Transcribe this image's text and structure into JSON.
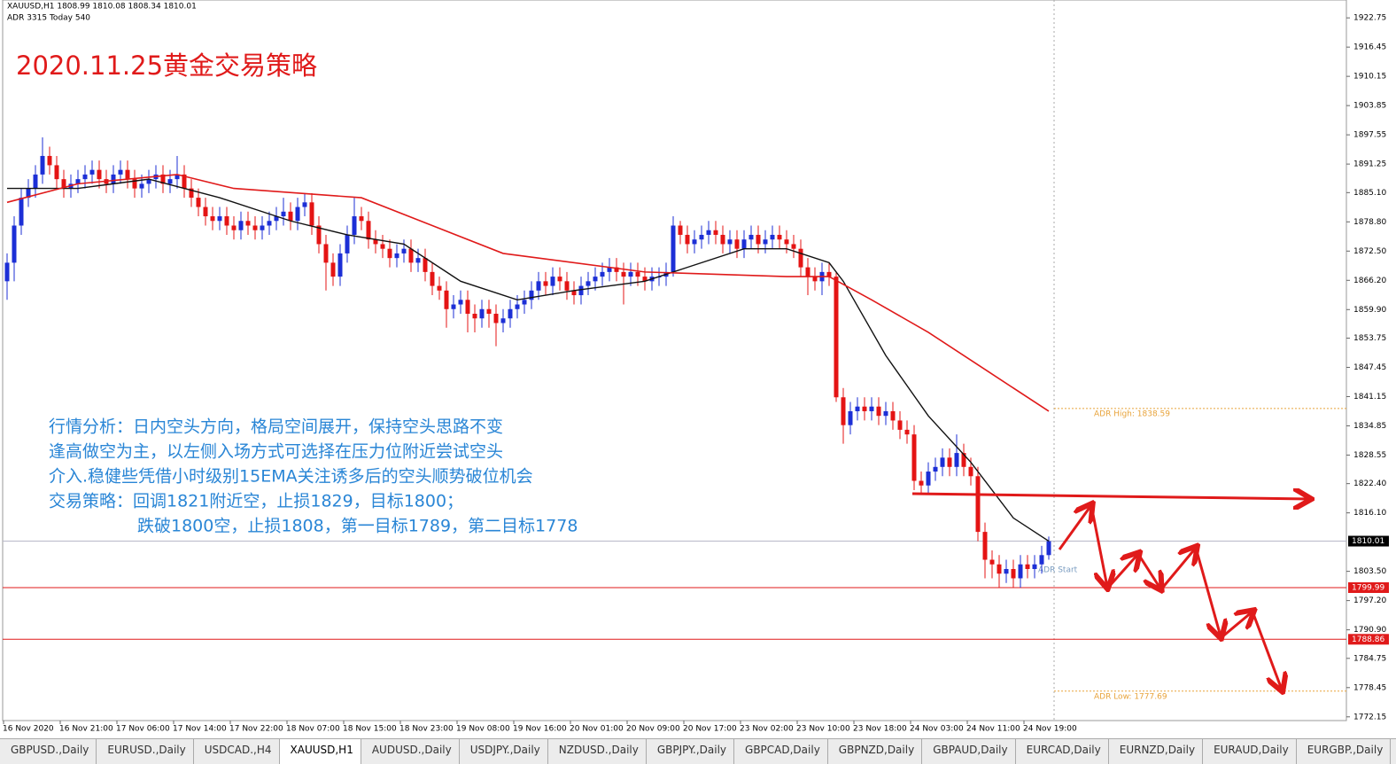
{
  "header": {
    "symbol_line": "XAUUSD,H1  1808.99 1810.08 1808.34 1810.01",
    "adr_line": "ADR 3315  Today 540"
  },
  "annotation": {
    "title": "2020.11.25黄金交易策略",
    "lines": [
      "行情分析：日内空头方向，格局空间展开，保持空头思路不变",
      "逢高做空为主，以左侧入场方式可选择在压力位附近尝试空头",
      "介入.稳健些凭借小时级别15EMA关注诱多后的空头顺势破位机会",
      "交易策略：回调1821附近空，止损1829，目标1800；",
      "跌破1800空，止损1808，第一目标1789，第二目标1778"
    ]
  },
  "tabs": [
    "GBPUSD.,Daily",
    "EURUSD.,Daily",
    "USDCAD.,H4",
    "XAUUSD,H1",
    "AUDUSD.,Daily",
    "USDJPY.,Daily",
    "NZDUSD.,Daily",
    "GBPJPY.,Daily",
    "GBPCAD,Daily",
    "GBPNZD,Daily",
    "GBPAUD,Daily",
    "EURCAD,Daily",
    "EURNZD,Daily",
    "EURAUD,Daily",
    "EURGBP.,Daily"
  ],
  "active_tab": "XAUUSD,H1",
  "chart_data": {
    "type": "candlestick",
    "up_color": "#1c2fd6",
    "down_color": "#e41414",
    "categories": [
      "16 Nov 2020",
      null,
      null,
      null,
      null,
      null,
      null,
      null,
      "16 Nov 21:00",
      null,
      null,
      null,
      null,
      null,
      null,
      null,
      "17 Nov 06:00",
      null,
      null,
      null,
      null,
      null,
      null,
      null,
      "17 Nov 14:00",
      null,
      null,
      null,
      null,
      null,
      null,
      null,
      "17 Nov 22:00",
      null,
      null,
      null,
      null,
      null,
      null,
      null,
      "18 Nov 07:00",
      null,
      null,
      null,
      null,
      null,
      null,
      null,
      "18 Nov 15:00",
      null,
      null,
      null,
      null,
      null,
      null,
      null,
      "18 Nov 23:00",
      null,
      null,
      null,
      null,
      null,
      null,
      null,
      "19 Nov 08:00",
      null,
      null,
      null,
      null,
      null,
      null,
      null,
      "19 Nov 16:00",
      null,
      null,
      null,
      null,
      null,
      null,
      null,
      "20 Nov 01:00",
      null,
      null,
      null,
      null,
      null,
      null,
      null,
      "20 Nov 09:00",
      null,
      null,
      null,
      null,
      null,
      null,
      null,
      "20 Nov 17:00",
      null,
      null,
      null,
      null,
      null,
      null,
      null,
      "23 Nov 02:00",
      null,
      null,
      null,
      null,
      null,
      null,
      null,
      "23 Nov 10:00",
      null,
      null,
      null,
      null,
      null,
      null,
      null,
      "23 Nov 18:00",
      null,
      null,
      null,
      null,
      null,
      null,
      null,
      "24 Nov 03:00",
      null,
      null,
      null,
      null,
      null,
      null,
      null,
      "24 Nov 11:00",
      null,
      null,
      null,
      null,
      null,
      null,
      null,
      "24 Nov 19:00",
      null,
      null,
      null
    ],
    "open": [
      1866,
      1870,
      1878,
      1884,
      1886,
      1889,
      1893,
      1891,
      1888,
      1886,
      1887,
      1888,
      1889,
      1890,
      1888,
      1887,
      1889,
      1890,
      1888,
      1886,
      1887,
      1888,
      1889,
      1887,
      1888,
      1889,
      1886,
      1884,
      1882,
      1880,
      1879,
      1880,
      1878,
      1877,
      1879,
      1878,
      1877,
      1878,
      1879,
      1880,
      1881,
      1879,
      1882,
      1883,
      1878,
      1874,
      1870,
      1867,
      1872,
      1876,
      1880,
      1879,
      1875,
      1874,
      1873,
      1871,
      1872,
      1873,
      1870,
      1871,
      1868,
      1865,
      1864,
      1860,
      1861,
      1862,
      1859,
      1858,
      1860,
      1859,
      1857,
      1858,
      1860,
      1861,
      1862,
      1864,
      1866,
      1865,
      1867,
      1866,
      1864,
      1863,
      1865,
      1866,
      1867,
      1868,
      1869,
      1868,
      1867,
      1868,
      1867,
      1866,
      1867,
      1867,
      1868,
      1878,
      1876,
      1874,
      1875,
      1876,
      1877,
      1876,
      1874,
      1875,
      1873,
      1875,
      1876,
      1874,
      1875,
      1876,
      1875,
      1874,
      1873,
      1869,
      1867,
      1866,
      1868,
      1867,
      1841,
      1835,
      1838,
      1839,
      1838,
      1839,
      1837,
      1838,
      1836,
      1834,
      1833,
      1823,
      1822,
      1825,
      1826,
      1828,
      1826,
      1829,
      1826,
      1824,
      1812,
      1806,
      1805,
      1803,
      1804,
      1802,
      1805,
      1804,
      1805,
      1807
    ],
    "high": [
      1872,
      1880,
      1886,
      1888,
      1891,
      1897,
      1895,
      1893,
      1890,
      1889,
      1890,
      1891,
      1892,
      1892,
      1890,
      1891,
      1892,
      1892,
      1890,
      1889,
      1890,
      1891,
      1891,
      1890,
      1893,
      1891,
      1888,
      1886,
      1884,
      1882,
      1882,
      1882,
      1880,
      1881,
      1881,
      1880,
      1880,
      1881,
      1882,
      1884,
      1883,
      1884,
      1885,
      1885,
      1880,
      1876,
      1872,
      1874,
      1878,
      1884,
      1882,
      1881,
      1877,
      1876,
      1875,
      1874,
      1875,
      1875,
      1873,
      1873,
      1870,
      1867,
      1866,
      1863,
      1864,
      1864,
      1861,
      1862,
      1862,
      1861,
      1860,
      1862,
      1863,
      1864,
      1866,
      1868,
      1868,
      1869,
      1869,
      1868,
      1866,
      1867,
      1868,
      1869,
      1870,
      1871,
      1871,
      1870,
      1870,
      1870,
      1869,
      1869,
      1869,
      1870,
      1880,
      1879,
      1878,
      1877,
      1878,
      1879,
      1879,
      1878,
      1877,
      1877,
      1877,
      1878,
      1878,
      1877,
      1878,
      1878,
      1877,
      1876,
      1875,
      1871,
      1869,
      1870,
      1870,
      1868,
      1843,
      1840,
      1841,
      1841,
      1841,
      1841,
      1840,
      1840,
      1838,
      1836,
      1835,
      1825,
      1827,
      1828,
      1830,
      1830,
      1833,
      1831,
      1828,
      1826,
      1814,
      1808,
      1807,
      1806,
      1806,
      1807,
      1807,
      1807,
      1809,
      1811
    ],
    "low": [
      1862,
      1866,
      1876,
      1882,
      1884,
      1887,
      1889,
      1886,
      1884,
      1884,
      1885,
      1886,
      1887,
      1886,
      1885,
      1885,
      1887,
      1886,
      1884,
      1884,
      1885,
      1886,
      1885,
      1885,
      1886,
      1884,
      1882,
      1880,
      1878,
      1877,
      1877,
      1876,
      1875,
      1875,
      1876,
      1875,
      1875,
      1876,
      1877,
      1878,
      1877,
      1877,
      1880,
      1876,
      1872,
      1864,
      1865,
      1865,
      1870,
      1874,
      1877,
      1873,
      1872,
      1871,
      1869,
      1869,
      1870,
      1868,
      1868,
      1866,
      1863,
      1862,
      1856,
      1858,
      1859,
      1855,
      1855,
      1856,
      1856,
      1852,
      1855,
      1856,
      1858,
      1859,
      1860,
      1862,
      1863,
      1863,
      1864,
      1862,
      1861,
      1861,
      1863,
      1864,
      1865,
      1866,
      1866,
      1861,
      1865,
      1865,
      1864,
      1864,
      1865,
      1865,
      1867,
      1874,
      1872,
      1872,
      1873,
      1874,
      1874,
      1872,
      1872,
      1871,
      1871,
      1873,
      1872,
      1872,
      1873,
      1873,
      1872,
      1871,
      1867,
      1863,
      1864,
      1863,
      1865,
      1840,
      1831,
      1833,
      1836,
      1836,
      1836,
      1835,
      1835,
      1834,
      1832,
      1831,
      1821,
      1820,
      1820,
      1823,
      1824,
      1824,
      1824,
      1824,
      1822,
      1810,
      1802,
      1802,
      1800,
      1801,
      1800,
      1800,
      1802,
      1802,
      1803,
      1806
    ],
    "close": [
      1870,
      1878,
      1884,
      1886,
      1889,
      1893,
      1891,
      1888,
      1886,
      1887,
      1888,
      1889,
      1890,
      1888,
      1887,
      1889,
      1890,
      1888,
      1886,
      1887,
      1888,
      1889,
      1887,
      1888,
      1889,
      1886,
      1884,
      1882,
      1880,
      1879,
      1880,
      1878,
      1877,
      1879,
      1878,
      1877,
      1878,
      1879,
      1880,
      1881,
      1879,
      1882,
      1883,
      1878,
      1874,
      1870,
      1867,
      1872,
      1876,
      1880,
      1879,
      1875,
      1874,
      1873,
      1871,
      1872,
      1873,
      1870,
      1871,
      1868,
      1865,
      1864,
      1860,
      1861,
      1862,
      1859,
      1858,
      1860,
      1859,
      1857,
      1858,
      1860,
      1861,
      1862,
      1864,
      1866,
      1865,
      1867,
      1866,
      1864,
      1863,
      1865,
      1866,
      1867,
      1868,
      1869,
      1868,
      1867,
      1868,
      1867,
      1866,
      1867,
      1867,
      1868,
      1878,
      1876,
      1874,
      1875,
      1876,
      1877,
      1876,
      1874,
      1875,
      1873,
      1875,
      1876,
      1874,
      1875,
      1876,
      1875,
      1874,
      1873,
      1869,
      1867,
      1866,
      1868,
      1867,
      1841,
      1835,
      1838,
      1839,
      1838,
      1839,
      1837,
      1838,
      1836,
      1834,
      1833,
      1823,
      1822,
      1825,
      1826,
      1828,
      1826,
      1829,
      1826,
      1824,
      1812,
      1806,
      1805,
      1803,
      1804,
      1802,
      1805,
      1804,
      1805,
      1807,
      1810
    ],
    "lines": [
      {
        "color": "#111111",
        "x": [
          0,
          10,
          20,
          30,
          40,
          48,
          56,
          64,
          72,
          80,
          90,
          96,
          104,
          110,
          116,
          118,
          124,
          130,
          136,
          142,
          147
        ],
        "values": [
          1886,
          1886,
          1888,
          1884,
          1879,
          1876,
          1874,
          1866,
          1862,
          1864,
          1866,
          1869,
          1873,
          1873,
          1870,
          1866,
          1850,
          1837,
          1827,
          1815,
          1810
        ]
      },
      {
        "color": "#e01a1a",
        "x": [
          0,
          10,
          24,
          32,
          50,
          70,
          90,
          110,
          116,
          122,
          130,
          138,
          147
        ],
        "values": [
          1883,
          1887,
          1889,
          1886,
          1884,
          1872,
          1868,
          1867,
          1867,
          1862,
          1855,
          1847,
          1838
        ]
      }
    ],
    "levels": [
      {
        "value": 1810.01,
        "color": "#b8b8c8",
        "tag_color": "#000000"
      },
      {
        "value": 1799.99,
        "color": "#e01a1a",
        "tag_color": "#e01a1a"
      },
      {
        "value": 1788.86,
        "color": "#e01a1a",
        "tag_color": "#e01a1a"
      }
    ],
    "adr": [
      {
        "label": "ADR High: 1838.59",
        "value": 1838.59
      },
      {
        "label": "ADR Low: 1777.69",
        "value": 1777.69
      }
    ],
    "adr_color": "#e8a33a",
    "adr_start": "ADR Start",
    "ylim": [
      1768.1,
      1926.6
    ],
    "yticks": [
      1922.75,
      1916.45,
      1910.15,
      1903.85,
      1897.55,
      1891.25,
      {
        "value": 1885.1,
        "label": "1885.10"
      },
      {
        "value": 1878.8,
        "label": "1878.80"
      },
      {
        "value": 1872.5,
        "label": "1872.50"
      },
      {
        "value": 1866.2,
        "label": "1866.20"
      },
      {
        "value": 1859.9,
        "label": "1859.90"
      },
      1853.75,
      1847.45,
      1841.15,
      1834.85,
      1828.55,
      {
        "value": 1822.4,
        "label": "1822.40"
      },
      {
        "value": 1816.1,
        "label": "1816.10"
      },
      {
        "value": 1803.5,
        "label": "1803.50"
      },
      {
        "value": 1797.2,
        "label": "1797.20"
      },
      {
        "value": 1790.9,
        "label": "1790.90"
      },
      1784.75,
      1778.45,
      1772.15
    ]
  }
}
